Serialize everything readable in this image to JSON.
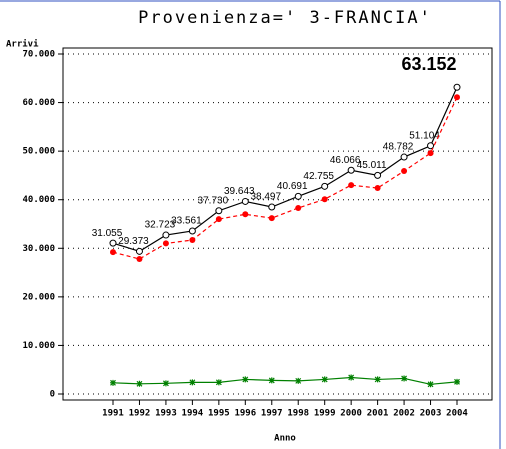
{
  "chart_data": {
    "type": "line",
    "title": "Provenienza=' 3-FRANCIA'",
    "ylabel": "Arrivi",
    "xlabel": "Anno",
    "categories": [
      "1991",
      "1992",
      "1993",
      "1994",
      "1995",
      "1996",
      "1997",
      "1998",
      "1999",
      "2000",
      "2001",
      "2002",
      "2003",
      "2004"
    ],
    "series": [
      {
        "color": "#000000",
        "marker": "open-circle",
        "dash": "solid",
        "values": [
          31055,
          29373,
          32723,
          33561,
          37730,
          39643,
          38497,
          40691,
          42755,
          46066,
          45011,
          48782,
          51104,
          63152
        ],
        "value_labels": [
          "31.055",
          "29.373",
          "32.723",
          "33.561",
          "37.730",
          "39.643",
          "38.497",
          "40.691",
          "42.755",
          "46.066",
          "45.011",
          "48.782",
          "51.104",
          "63.152"
        ]
      },
      {
        "color": "#ff0000",
        "marker": "dot",
        "dash": "dashed",
        "values": [
          29200,
          27800,
          31000,
          31700,
          36000,
          37000,
          36200,
          38300,
          40100,
          43000,
          42400,
          45900,
          49600,
          61100
        ]
      },
      {
        "color": "#008000",
        "marker": "star",
        "dash": "solid",
        "values": [
          2300,
          2100,
          2200,
          2400,
          2400,
          3000,
          2800,
          2700,
          3000,
          3400,
          3000,
          3200,
          2000,
          2500
        ]
      }
    ],
    "ylim": [
      0,
      70000
    ],
    "yticks": [
      0,
      {
        "value": 10000,
        "label": "10.000"
      },
      {
        "value": 20000,
        "label": "20.000"
      },
      {
        "value": 30000,
        "label": "30.000"
      },
      {
        "value": 40000,
        "label": "40.000"
      },
      {
        "value": 50000,
        "label": "50.000"
      },
      {
        "value": 60000,
        "label": "60.000"
      },
      {
        "value": 70000,
        "label": "70.000"
      }
    ],
    "grid": true
  }
}
